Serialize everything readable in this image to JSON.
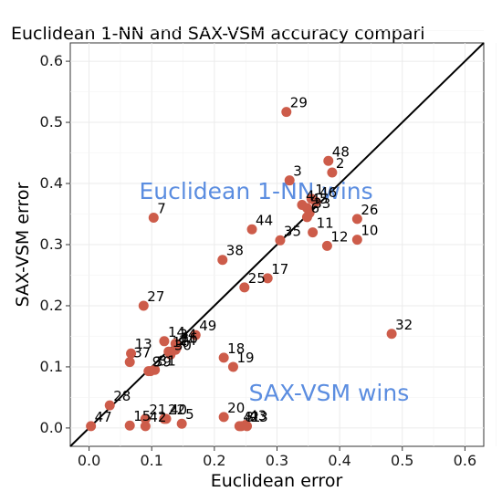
{
  "chart_data": {
    "type": "scatter",
    "title": "Euclidean 1-NN and SAX-VSM accuracy compari",
    "xlabel": "Euclidean error",
    "ylabel": "SAX-VSM error",
    "xlim": [
      -0.03,
      0.63
    ],
    "ylim": [
      -0.03,
      0.63
    ],
    "xticks": [
      "0.0",
      "0.1",
      "0.2",
      "0.3",
      "0.4",
      "0.5",
      "0.6"
    ],
    "yticks": [
      "0.0",
      "0.1",
      "0.2",
      "0.3",
      "0.4",
      "0.5",
      "0.6"
    ],
    "grid": true,
    "reference_line": "y = x",
    "point_color": "#cd5c4a",
    "annotation_color": "#5b8de0",
    "annotations": [
      {
        "text": "Euclidean 1-NN wins",
        "x": 0.08,
        "y": 0.375
      },
      {
        "text": "SAX-VSM wins",
        "x": 0.255,
        "y": 0.045
      }
    ],
    "points": [
      {
        "label": "1",
        "x": 0.355,
        "y": 0.375
      },
      {
        "label": "2",
        "x": 0.388,
        "y": 0.418
      },
      {
        "label": "3",
        "x": 0.32,
        "y": 0.405
      },
      {
        "label": "4",
        "x": 0.34,
        "y": 0.365
      },
      {
        "label": "5",
        "x": 0.148,
        "y": 0.007
      },
      {
        "label": "6",
        "x": 0.348,
        "y": 0.345
      },
      {
        "label": "7",
        "x": 0.103,
        "y": 0.344
      },
      {
        "label": "8",
        "x": 0.243,
        "y": 0.003
      },
      {
        "label": "9",
        "x": 0.095,
        "y": 0.093
      },
      {
        "label": "10",
        "x": 0.428,
        "y": 0.308
      },
      {
        "label": "11",
        "x": 0.357,
        "y": 0.32
      },
      {
        "label": "12",
        "x": 0.38,
        "y": 0.298
      },
      {
        "label": "13",
        "x": 0.067,
        "y": 0.122
      },
      {
        "label": "14",
        "x": 0.12,
        "y": 0.142
      },
      {
        "label": "15",
        "x": 0.065,
        "y": 0.004
      },
      {
        "label": "16",
        "x": 0.127,
        "y": 0.125
      },
      {
        "label": "17",
        "x": 0.285,
        "y": 0.245
      },
      {
        "label": "18",
        "x": 0.215,
        "y": 0.115
      },
      {
        "label": "19",
        "x": 0.23,
        "y": 0.1
      },
      {
        "label": "20",
        "x": 0.215,
        "y": 0.018
      },
      {
        "label": "21",
        "x": 0.09,
        "y": 0.015
      },
      {
        "label": "22",
        "x": 0.12,
        "y": 0.015
      },
      {
        "label": "23",
        "x": 0.252,
        "y": 0.003
      },
      {
        "label": "24",
        "x": 0.138,
        "y": 0.128
      },
      {
        "label": "25",
        "x": 0.248,
        "y": 0.23
      },
      {
        "label": "26",
        "x": 0.428,
        "y": 0.342
      },
      {
        "label": "27",
        "x": 0.087,
        "y": 0.2
      },
      {
        "label": "28",
        "x": 0.033,
        "y": 0.037
      },
      {
        "label": "29",
        "x": 0.315,
        "y": 0.517
      },
      {
        "label": "30",
        "x": 0.13,
        "y": 0.12
      },
      {
        "label": "31",
        "x": 0.105,
        "y": 0.095
      },
      {
        "label": "32",
        "x": 0.483,
        "y": 0.154
      },
      {
        "label": "33",
        "x": 0.352,
        "y": 0.352
      },
      {
        "label": "34",
        "x": 0.138,
        "y": 0.138
      },
      {
        "label": "35",
        "x": 0.305,
        "y": 0.307
      },
      {
        "label": "36",
        "x": 0.14,
        "y": 0.132
      },
      {
        "label": "37",
        "x": 0.065,
        "y": 0.108
      },
      {
        "label": "38",
        "x": 0.213,
        "y": 0.275
      },
      {
        "label": "39",
        "x": 0.098,
        "y": 0.093
      },
      {
        "label": "40",
        "x": 0.123,
        "y": 0.015
      },
      {
        "label": "41",
        "x": 0.24,
        "y": 0.003
      },
      {
        "label": "42",
        "x": 0.09,
        "y": 0.003
      },
      {
        "label": "43",
        "x": 0.25,
        "y": 0.005
      },
      {
        "label": "44",
        "x": 0.26,
        "y": 0.325
      },
      {
        "label": "45",
        "x": 0.348,
        "y": 0.36
      },
      {
        "label": "46",
        "x": 0.362,
        "y": 0.37
      },
      {
        "label": "47",
        "x": 0.003,
        "y": 0.003
      },
      {
        "label": "48",
        "x": 0.382,
        "y": 0.437
      },
      {
        "label": "49",
        "x": 0.17,
        "y": 0.152
      }
    ]
  }
}
